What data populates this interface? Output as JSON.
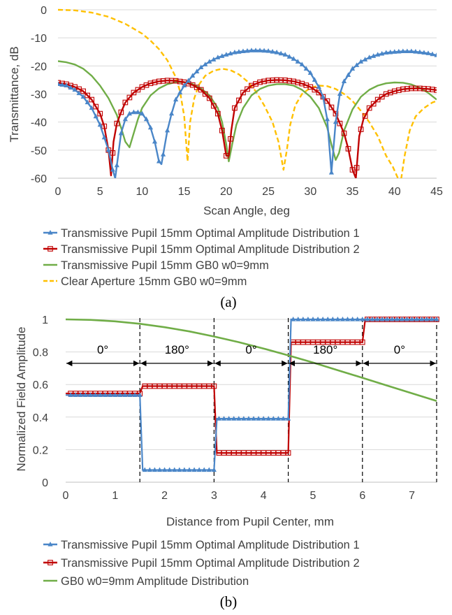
{
  "colors": {
    "blue": "#4a86c8",
    "red": "#c00000",
    "green": "#70ad47",
    "orange": "#ffc000",
    "grid": "#d9d9d9",
    "axis": "#bfbfbf",
    "text": "#404040"
  },
  "chart_data": [
    {
      "type": "line",
      "caption": "(a)",
      "xlabel": "Scan Angle, deg",
      "ylabel": "Transmittance, dB",
      "xlim": [
        0,
        45
      ],
      "ylim": [
        -60,
        0
      ],
      "xticks": [
        0,
        5,
        10,
        15,
        20,
        25,
        30,
        35,
        40,
        45
      ],
      "yticks": [
        0,
        -10,
        -20,
        -30,
        -40,
        -50,
        -60
      ],
      "grid": "horizontal",
      "legend_position": "bottom",
      "series": [
        {
          "name": "Transmissive Pupil 15mm Optimal Amplitude Distribution 1",
          "color": "#4a86c8",
          "marker": "triangle",
          "style": "solid",
          "x": [
            0,
            1,
            2,
            3,
            4,
            5,
            6,
            6.5,
            6.8,
            7.5,
            8,
            8.5,
            9,
            9.5,
            10,
            10.5,
            11,
            11.5,
            12,
            12.3,
            13,
            13.5,
            14,
            15,
            16,
            17,
            18,
            19,
            20,
            21,
            22,
            23,
            24,
            25,
            26,
            27,
            28,
            29,
            30,
            31,
            31.5,
            32,
            32.5,
            33,
            33.5,
            34,
            35,
            36,
            37,
            38,
            39,
            40,
            41,
            42,
            43,
            44,
            45
          ],
          "y": [
            -26.5,
            -27,
            -28.5,
            -31,
            -35,
            -41,
            -50,
            -57,
            -60,
            -44,
            -39,
            -37,
            -36.5,
            -36.5,
            -37,
            -39,
            -42,
            -47,
            -54,
            -55,
            -43,
            -37,
            -32,
            -27,
            -23.5,
            -20.5,
            -18.5,
            -17,
            -16,
            -15.2,
            -14.8,
            -14.5,
            -14.5,
            -14.7,
            -15.2,
            -16,
            -17.5,
            -19.5,
            -22.5,
            -27.5,
            -31,
            -39,
            -58,
            -40,
            -30,
            -25.5,
            -21,
            -18.5,
            -17,
            -16,
            -15.3,
            -15,
            -14.8,
            -14.8,
            -15.1,
            -15.5,
            -16.2
          ]
        },
        {
          "name": "Transmissive Pupil 15mm Optimal Amplitude Distribution 2",
          "color": "#c00000",
          "marker": "square",
          "style": "solid",
          "x": [
            0,
            1,
            2,
            3,
            4,
            5,
            5.5,
            6,
            6.3,
            6.6,
            7,
            7.5,
            8,
            9,
            10,
            11,
            12,
            13,
            14,
            15,
            16,
            17,
            18,
            19,
            19.5,
            20,
            20.3,
            20.6,
            21,
            22,
            23,
            24,
            25,
            26,
            27,
            28,
            29,
            30,
            31,
            32,
            33,
            34,
            34.5,
            35,
            35.4,
            35.8,
            36.3,
            37,
            38,
            39,
            40,
            41,
            42,
            43,
            44,
            45
          ],
          "y": [
            -26,
            -26.5,
            -27.5,
            -29,
            -32,
            -37,
            -41.5,
            -50,
            -59,
            -47,
            -40.5,
            -36.5,
            -33,
            -29.5,
            -27.5,
            -26.2,
            -25.5,
            -25.2,
            -25.3,
            -25.8,
            -26.8,
            -28.5,
            -31.5,
            -37,
            -43,
            -52,
            -52,
            -43,
            -35,
            -29.5,
            -27,
            -25.8,
            -25.2,
            -25,
            -25.1,
            -25.5,
            -26.3,
            -27.5,
            -29.5,
            -32.5,
            -37,
            -44,
            -49.5,
            -57,
            -60,
            -45,
            -39,
            -35,
            -32,
            -30,
            -29,
            -28.3,
            -28,
            -28,
            -28.2,
            -28.6
          ]
        },
        {
          "name": "Transmissive Pupil 15mm GB0 w0=9mm",
          "color": "#70ad47",
          "marker": "none",
          "style": "solid",
          "x": [
            0,
            1,
            2,
            3,
            4,
            5,
            6,
            7,
            7.5,
            8,
            8.5,
            9,
            9.5,
            10,
            11,
            12,
            13,
            14,
            15,
            16,
            17,
            18,
            19,
            19.5,
            20,
            20.3,
            20.7,
            21.2,
            22,
            23,
            24,
            25,
            26,
            27,
            28,
            29,
            30,
            31,
            32,
            32.5,
            33,
            33.4,
            34,
            35,
            36,
            37,
            38,
            39,
            40,
            41,
            42,
            43,
            44,
            45
          ],
          "y": [
            -18.3,
            -18.7,
            -19.5,
            -21,
            -23.5,
            -27,
            -31.5,
            -37.5,
            -42,
            -47,
            -49,
            -44,
            -39,
            -35,
            -30.5,
            -28,
            -26.5,
            -25.8,
            -25.8,
            -26.5,
            -28,
            -30.5,
            -35,
            -40,
            -48,
            -54,
            -48,
            -41,
            -35,
            -30.5,
            -28.2,
            -27,
            -26.5,
            -26.5,
            -27,
            -28.5,
            -31,
            -35,
            -42,
            -48,
            -53.5,
            -51,
            -43,
            -35.5,
            -31,
            -28.5,
            -27,
            -26.2,
            -25.9,
            -26,
            -26.6,
            -27.8,
            -29.6,
            -32
          ]
        },
        {
          "name": "Clear Aperture 15mm GB0 w0=9mm",
          "color": "#ffc000",
          "marker": "none",
          "style": "dashed",
          "x": [
            0,
            2,
            4,
            6,
            8,
            10,
            11,
            12,
            13,
            14,
            14.5,
            15,
            15.4,
            15.7,
            16.2,
            16.8,
            17.5,
            18.5,
            19.5,
            20.5,
            21.5,
            22.5,
            23.5,
            24.5,
            25.5,
            26.2,
            26.8,
            27.2,
            27.6,
            28.2,
            29,
            30,
            31,
            32,
            33,
            34,
            35,
            36,
            37,
            38,
            39,
            39.8,
            40.4,
            40.8,
            41.2,
            41.8,
            42.5,
            43.5,
            44.5,
            45
          ],
          "y": [
            0,
            -0.2,
            -1,
            -2.5,
            -5,
            -8.5,
            -11,
            -14,
            -18,
            -24,
            -29,
            -38,
            -54,
            -40,
            -31.5,
            -26.5,
            -23.5,
            -21.7,
            -21,
            -21.5,
            -23,
            -25.5,
            -29,
            -34,
            -40,
            -47,
            -57,
            -50,
            -41,
            -34,
            -30,
            -27.8,
            -27,
            -27.2,
            -28.2,
            -30,
            -32.5,
            -36,
            -40,
            -45,
            -52,
            -56,
            -60,
            -60,
            -52,
            -43,
            -38,
            -35,
            -33,
            -32.5
          ]
        }
      ]
    },
    {
      "type": "line",
      "caption": "(b)",
      "xlabel": "Distance from Pupil Center, mm",
      "ylabel": "Normalized Field Amplitude",
      "xlim": [
        0,
        7.5
      ],
      "ylim": [
        0,
        1
      ],
      "xticks": [
        0,
        1,
        2,
        3,
        4,
        5,
        6,
        7
      ],
      "yticks": [
        0,
        0.2,
        0.4,
        0.6,
        0.8,
        1
      ],
      "grid": "horizontal",
      "legend_position": "bottom",
      "phase_annotations": [
        {
          "label": "0°",
          "from": 0,
          "to": 1.5
        },
        {
          "label": "180°",
          "from": 1.5,
          "to": 3
        },
        {
          "label": "0°",
          "from": 3,
          "to": 4.5
        },
        {
          "label": "180°",
          "from": 4.5,
          "to": 6
        },
        {
          "label": "0°",
          "from": 6,
          "to": 7.5
        }
      ],
      "phase_arrow_level": 0.73,
      "zone_boundaries": [
        1.5,
        3,
        4.5,
        6,
        7.5
      ],
      "series": [
        {
          "name": "Transmissive Pupil 15mm Optimal Amplitude Distribution 1",
          "color": "#4a86c8",
          "marker": "triangle",
          "style": "solid",
          "steps": [
            {
              "from": 0,
              "to": 1.5,
              "value": 0.535
            },
            {
              "from": 1.5,
              "to": 3,
              "value": 0.075
            },
            {
              "from": 3,
              "to": 4.5,
              "value": 0.39
            },
            {
              "from": 4.5,
              "to": 6,
              "value": 1.0
            },
            {
              "from": 6,
              "to": 7.5,
              "value": 1.0
            }
          ]
        },
        {
          "name": "Transmissive Pupil 15mm Optimal Amplitude Distribution 2",
          "color": "#c00000",
          "marker": "square",
          "style": "solid",
          "steps": [
            {
              "from": 0,
              "to": 1.5,
              "value": 0.545
            },
            {
              "from": 1.5,
              "to": 3,
              "value": 0.59
            },
            {
              "from": 3,
              "to": 4.5,
              "value": 0.18
            },
            {
              "from": 4.5,
              "to": 6,
              "value": 0.86
            },
            {
              "from": 6,
              "to": 7.5,
              "value": 1.0
            }
          ]
        },
        {
          "name": "GB0 w0=9mm Amplitude Distribution",
          "color": "#70ad47",
          "marker": "none",
          "style": "solid",
          "function": "gaussian",
          "w0": 9,
          "x": [
            0,
            0.5,
            1,
            1.5,
            2,
            2.5,
            3,
            3.5,
            4,
            4.5,
            5,
            5.5,
            6,
            6.5,
            7,
            7.5
          ],
          "y": [
            1.0,
            0.997,
            0.988,
            0.973,
            0.952,
            0.926,
            0.895,
            0.86,
            0.821,
            0.779,
            0.735,
            0.688,
            0.641,
            0.593,
            0.546,
            0.499
          ]
        }
      ]
    }
  ]
}
